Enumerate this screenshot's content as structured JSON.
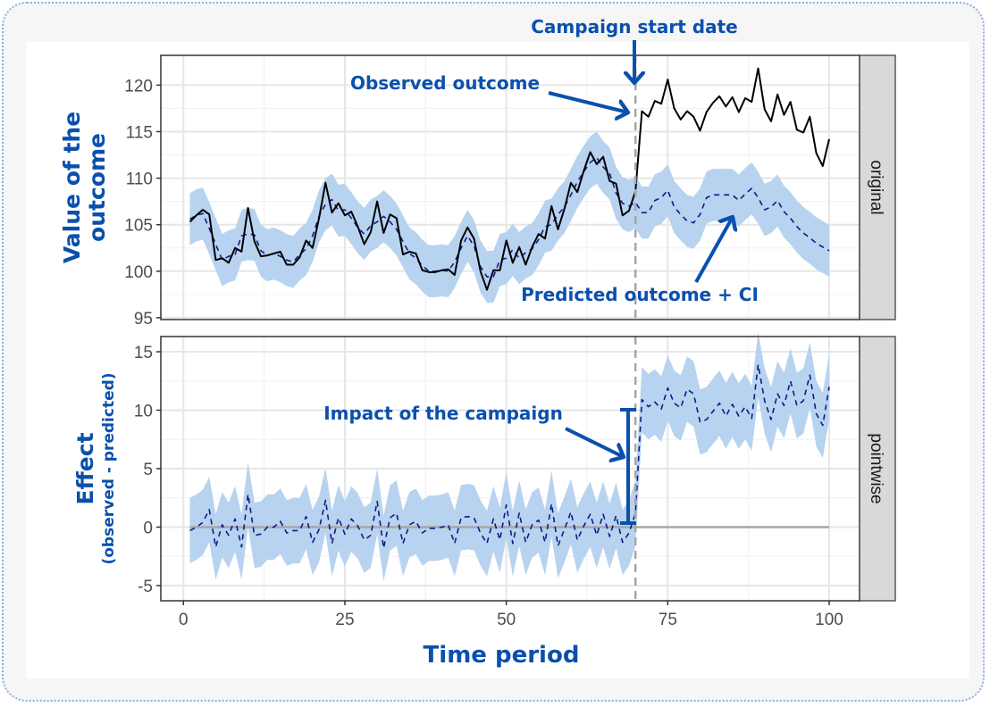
{
  "chart_data": {
    "type": "line",
    "panels": [
      {
        "strip": "original",
        "ylabel_line1": "Value of the",
        "ylabel_line2": "outcome",
        "ylim": [
          94.8,
          123.2
        ],
        "yticks": [
          95,
          100,
          105,
          110,
          115,
          120
        ]
      },
      {
        "strip": "pointwise",
        "ylabel": "Effect",
        "ylabel_sub": "(observed - predicted)",
        "ylim": [
          -6.3,
          16.3
        ],
        "yticks": [
          -5,
          0,
          5,
          10,
          15
        ]
      }
    ],
    "xlabel": "Time period",
    "xlim": [
      -3.5,
      104.7
    ],
    "xticks": [
      0,
      25,
      50,
      75,
      100
    ],
    "intervention_time": 70,
    "ci_halfwidth": 2.8,
    "grid": true,
    "series": [
      {
        "name": "Observed outcome",
        "color": "#000000",
        "values": [
          105.3,
          106.0,
          106.6,
          106.1,
          101.2,
          101.4,
          100.9,
          102.5,
          102.1,
          106.8,
          103.2,
          101.6,
          101.7,
          101.9,
          102.1,
          100.7,
          100.7,
          101.5,
          103.3,
          102.5,
          105.7,
          109.5,
          106.3,
          107.3,
          106.0,
          106.4,
          104.8,
          102.9,
          104.2,
          107.5,
          104.1,
          106.1,
          105.7,
          101.8,
          102.1,
          101.9,
          100.1,
          99.9,
          99.9,
          100.1,
          100.2,
          99.6,
          103.3,
          104.7,
          103.5,
          100.0,
          98.0,
          100.1,
          100.1,
          103.3,
          100.9,
          102.6,
          100.7,
          102.6,
          104.0,
          103.5,
          107.0,
          104.5,
          106.7,
          109.5,
          108.5,
          110.8,
          112.8,
          111.5,
          112.3,
          109.7,
          109.4,
          106.0,
          106.5,
          108.6,
          117.2,
          116.6,
          118.3,
          118.0,
          120.6,
          117.5,
          116.3,
          117.2,
          116.6,
          115.1,
          117.1,
          118.1,
          118.8,
          117.7,
          118.7,
          117.1,
          118.6,
          118.2,
          121.8,
          117.4,
          116.1,
          119.0,
          116.8,
          118.2,
          115.2,
          114.9,
          116.6,
          112.7,
          111.3,
          114.2
        ]
      },
      {
        "name": "Predicted outcome",
        "color": "#0d1a8a",
        "values": [
          105.6,
          106.0,
          106.2,
          104.6,
          102.9,
          101.2,
          101.6,
          101.8,
          103.8,
          104.0,
          103.9,
          102.2,
          101.7,
          101.9,
          101.6,
          101.2,
          101.0,
          101.8,
          102.4,
          103.8,
          105.9,
          107.2,
          107.7,
          106.5,
          106.6,
          105.7,
          104.7,
          104.0,
          104.9,
          105.3,
          105.9,
          105.3,
          104.5,
          103.2,
          101.9,
          101.4,
          100.6,
          100.0,
          100.0,
          100.1,
          100.0,
          101.0,
          102.5,
          103.8,
          102.7,
          100.5,
          99.4,
          99.4,
          101.2,
          101.4,
          102.3,
          101.4,
          102.0,
          102.4,
          103.4,
          104.8,
          105.0,
          106.1,
          106.9,
          108.2,
          109.6,
          110.7,
          111.7,
          112.2,
          111.2,
          110.5,
          108.4,
          107.3,
          107.0,
          107.4,
          106.3,
          106.3,
          107.6,
          107.9,
          108.7,
          106.9,
          106.1,
          105.4,
          105.2,
          106.1,
          107.9,
          108.2,
          108.2,
          108.2,
          108.2,
          107.6,
          108.3,
          108.9,
          107.9,
          106.6,
          106.9,
          107.6,
          106.4,
          105.7,
          104.8,
          104.1,
          103.6,
          103.0,
          102.6,
          102.2
        ]
      }
    ],
    "colors": {
      "ci": "#b8d3ef",
      "annotation": "#0a50ad",
      "vline": "#a6a6a6",
      "zero_line": "#a6a6a6"
    },
    "annotations": {
      "campaign_start": "Campaign start date",
      "observed": "Observed outcome",
      "predicted": "Predicted outcome + CI",
      "impact": "Impact of the campaign"
    }
  }
}
